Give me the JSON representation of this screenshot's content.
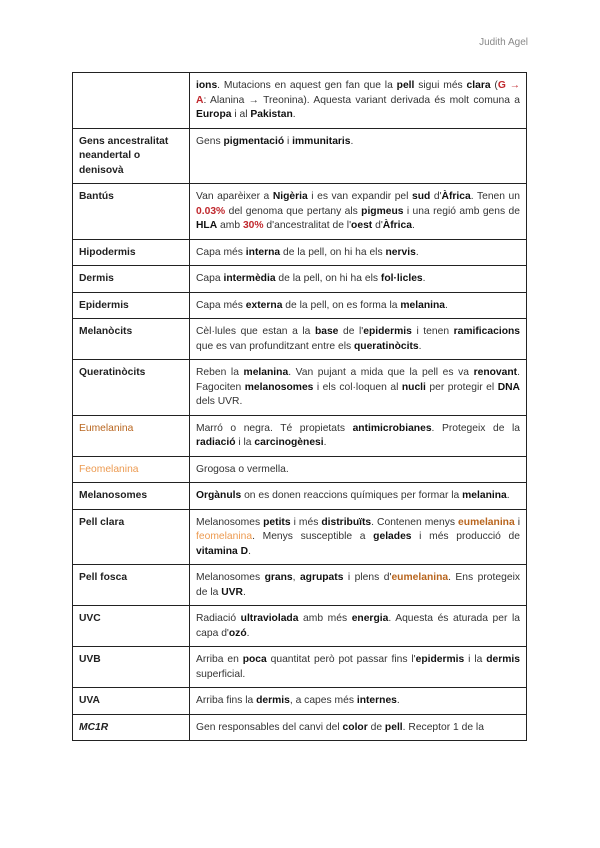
{
  "header": {
    "author": "Judith Agel"
  },
  "colors": {
    "red": "#c0282d",
    "eumelanina": "#b8651e",
    "feomelanina": "#ec9a50"
  },
  "rows": [
    {
      "term": "",
      "style": "",
      "def": [
        {
          "t": "ions",
          "s": "b"
        },
        {
          "t": ". Mutacions en aquest gen fan que la ",
          "s": ""
        },
        {
          "t": "pell",
          "s": "b"
        },
        {
          "t": " sigui més ",
          "s": ""
        },
        {
          "t": "clara",
          "s": "b"
        },
        {
          "t": " (",
          "s": ""
        },
        {
          "t": "G → A",
          "s": "r"
        },
        {
          "t": ": Alanina → Treonina). Aquesta variant derivada és molt comuna a ",
          "s": ""
        },
        {
          "t": "Europa",
          "s": "b"
        },
        {
          "t": " i al ",
          "s": ""
        },
        {
          "t": "Pakistan",
          "s": "b"
        },
        {
          "t": ".",
          "s": ""
        }
      ]
    },
    {
      "term": "Gens ancestralitat neandertal o denisovà",
      "style": "",
      "def": [
        {
          "t": "Gens ",
          "s": ""
        },
        {
          "t": "pigmentació",
          "s": "b"
        },
        {
          "t": " i ",
          "s": ""
        },
        {
          "t": "immunitaris",
          "s": "b"
        },
        {
          "t": ".",
          "s": ""
        }
      ]
    },
    {
      "term": "Bantús",
      "style": "",
      "def": [
        {
          "t": "Van aparèixer a ",
          "s": ""
        },
        {
          "t": "Nigèria",
          "s": "b"
        },
        {
          "t": " i es van expandir pel ",
          "s": ""
        },
        {
          "t": "sud",
          "s": "b"
        },
        {
          "t": " d'",
          "s": ""
        },
        {
          "t": "Àfrica",
          "s": "b"
        },
        {
          "t": ". Tenen un ",
          "s": ""
        },
        {
          "t": "0.03%",
          "s": "r"
        },
        {
          "t": " del genoma que pertany als ",
          "s": ""
        },
        {
          "t": "pigmeus",
          "s": "b"
        },
        {
          "t": " i una regió amb gens de ",
          "s": ""
        },
        {
          "t": "HLA",
          "s": "b"
        },
        {
          "t": " amb ",
          "s": ""
        },
        {
          "t": "30%",
          "s": "r"
        },
        {
          "t": " d'ancestralitat de l'",
          "s": ""
        },
        {
          "t": "oest",
          "s": "b"
        },
        {
          "t": " d'",
          "s": ""
        },
        {
          "t": "Àfrica",
          "s": "b"
        },
        {
          "t": ".",
          "s": ""
        }
      ]
    },
    {
      "term": "Hipodermis",
      "style": "",
      "def": [
        {
          "t": "Capa més ",
          "s": ""
        },
        {
          "t": "interna",
          "s": "b"
        },
        {
          "t": " de la pell, on hi ha els ",
          "s": ""
        },
        {
          "t": "nervis",
          "s": "b"
        },
        {
          "t": ".",
          "s": ""
        }
      ]
    },
    {
      "term": "Dermis",
      "style": "",
      "def": [
        {
          "t": "Capa ",
          "s": ""
        },
        {
          "t": "intermèdia",
          "s": "b"
        },
        {
          "t": " de la pell, on hi ha els ",
          "s": ""
        },
        {
          "t": "fol·licles",
          "s": "b"
        },
        {
          "t": ".",
          "s": ""
        }
      ]
    },
    {
      "term": "Epidermis",
      "style": "",
      "def": [
        {
          "t": "Capa més ",
          "s": ""
        },
        {
          "t": "externa",
          "s": "b"
        },
        {
          "t": " de la pell, on es forma la ",
          "s": ""
        },
        {
          "t": "melanina",
          "s": "b"
        },
        {
          "t": ".",
          "s": ""
        }
      ]
    },
    {
      "term": "Melanòcits",
      "style": "",
      "def": [
        {
          "t": "Cèl·lules que estan a la ",
          "s": ""
        },
        {
          "t": "base",
          "s": "b"
        },
        {
          "t": " de l'",
          "s": ""
        },
        {
          "t": "epidermis",
          "s": "b"
        },
        {
          "t": " i tenen ",
          "s": ""
        },
        {
          "t": "ramificacions",
          "s": "b"
        },
        {
          "t": " que es van profunditzant entre els ",
          "s": ""
        },
        {
          "t": "queratinòcits",
          "s": "b"
        },
        {
          "t": ".",
          "s": ""
        }
      ]
    },
    {
      "term": "Queratinòcits",
      "style": "",
      "def": [
        {
          "t": "Reben la ",
          "s": ""
        },
        {
          "t": "melanina",
          "s": "b"
        },
        {
          "t": ". Van pujant a mida que la pell es va ",
          "s": ""
        },
        {
          "t": "renovant",
          "s": "b"
        },
        {
          "t": ". Fagociten ",
          "s": ""
        },
        {
          "t": "melanosomes",
          "s": "b"
        },
        {
          "t": " i els col·loquen al ",
          "s": ""
        },
        {
          "t": "nucli",
          "s": "b"
        },
        {
          "t": " per protegir el ",
          "s": ""
        },
        {
          "t": "DNA",
          "s": "b"
        },
        {
          "t": " dels UVR.",
          "s": ""
        }
      ]
    },
    {
      "term": "Eumelanina",
      "style": "eu",
      "def": [
        {
          "t": "Marró o negra. Té propietats ",
          "s": ""
        },
        {
          "t": "antimicrobianes",
          "s": "b"
        },
        {
          "t": ". Protegeix de la ",
          "s": ""
        },
        {
          "t": "radiació",
          "s": "b"
        },
        {
          "t": " i la ",
          "s": ""
        },
        {
          "t": "carcinogènesi",
          "s": "b"
        },
        {
          "t": ".",
          "s": ""
        }
      ]
    },
    {
      "term": "Feomelanina",
      "style": "feo",
      "def": [
        {
          "t": "Grogosa o vermella.",
          "s": ""
        }
      ]
    },
    {
      "term": "Melanosomes",
      "style": "",
      "def": [
        {
          "t": "Orgànuls",
          "s": "b"
        },
        {
          "t": " on es donen reaccions químiques per formar la ",
          "s": ""
        },
        {
          "t": "melanina",
          "s": "b"
        },
        {
          "t": ".",
          "s": ""
        }
      ]
    },
    {
      "term": "Pell clara",
      "style": "",
      "def": [
        {
          "t": "Melanosomes ",
          "s": ""
        },
        {
          "t": "petits",
          "s": "b"
        },
        {
          "t": " i més ",
          "s": ""
        },
        {
          "t": "distribuïts",
          "s": "b"
        },
        {
          "t": ". Contenen menys ",
          "s": ""
        },
        {
          "t": "eumelanina",
          "s": "eub"
        },
        {
          "t": " i ",
          "s": ""
        },
        {
          "t": "feomelanina",
          "s": "feo"
        },
        {
          "t": ". Menys susceptible a ",
          "s": ""
        },
        {
          "t": "gelades",
          "s": "b"
        },
        {
          "t": " i més producció de ",
          "s": ""
        },
        {
          "t": "vitamina D",
          "s": "b"
        },
        {
          "t": ".",
          "s": ""
        }
      ]
    },
    {
      "term": "Pell fosca",
      "style": "",
      "def": [
        {
          "t": "Melanosomes ",
          "s": ""
        },
        {
          "t": "grans",
          "s": "b"
        },
        {
          "t": ", ",
          "s": ""
        },
        {
          "t": "agrupats",
          "s": "b"
        },
        {
          "t": " i plens d'",
          "s": ""
        },
        {
          "t": "eumelanina",
          "s": "eub"
        },
        {
          "t": ". Ens protegeix de la ",
          "s": ""
        },
        {
          "t": "UVR",
          "s": "b"
        },
        {
          "t": ".",
          "s": ""
        }
      ]
    },
    {
      "term": "UVC",
      "style": "",
      "def": [
        {
          "t": "Radiació ",
          "s": ""
        },
        {
          "t": "ultraviolada",
          "s": "b"
        },
        {
          "t": " amb més ",
          "s": ""
        },
        {
          "t": "energia",
          "s": "b"
        },
        {
          "t": ". Aquesta és aturada per la capa d'",
          "s": ""
        },
        {
          "t": "ozó",
          "s": "b"
        },
        {
          "t": ".",
          "s": ""
        }
      ]
    },
    {
      "term": "UVB",
      "style": "",
      "def": [
        {
          "t": "Arriba en ",
          "s": ""
        },
        {
          "t": "poca",
          "s": "b"
        },
        {
          "t": " quantitat però pot passar fins l'",
          "s": ""
        },
        {
          "t": "epidermis",
          "s": "b"
        },
        {
          "t": " i la ",
          "s": ""
        },
        {
          "t": "dermis",
          "s": "b"
        },
        {
          "t": " superficial.",
          "s": ""
        }
      ]
    },
    {
      "term": "UVA",
      "style": "",
      "def": [
        {
          "t": "Arriba fins la ",
          "s": ""
        },
        {
          "t": "dermis",
          "s": "b"
        },
        {
          "t": ", a capes més ",
          "s": ""
        },
        {
          "t": "internes",
          "s": "b"
        },
        {
          "t": ".",
          "s": ""
        }
      ]
    },
    {
      "term": "MC1R",
      "style": "i",
      "def": [
        {
          "t": "Gen responsables del canvi del ",
          "s": ""
        },
        {
          "t": "color",
          "s": "b"
        },
        {
          "t": " de ",
          "s": ""
        },
        {
          "t": "pell",
          "s": "b"
        },
        {
          "t": ". Receptor 1 de la",
          "s": ""
        }
      ]
    }
  ]
}
